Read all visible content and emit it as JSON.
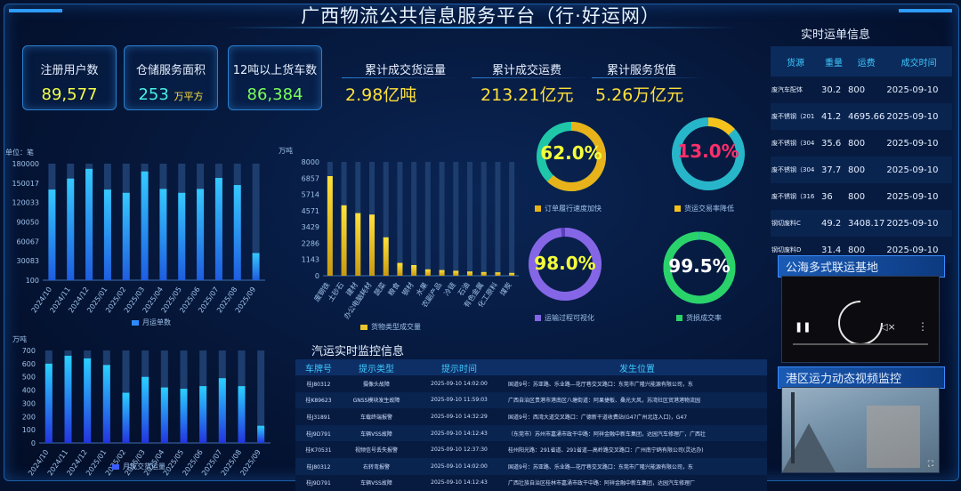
{
  "header": {
    "title": "广西物流公共信息服务平台（行·好运网）"
  },
  "stats": [
    {
      "label": "注册用户数",
      "value": "89,577",
      "unit": "",
      "color": "#f2ff4a"
    },
    {
      "label": "仓储服务面积",
      "value": "253",
      "unit": "万平方",
      "color": "#49f0e6"
    },
    {
      "label": "12吨以上货车数",
      "value": "86,384",
      "unit": "",
      "color": "#7bff5a"
    }
  ],
  "summary": [
    {
      "label": "累计成交货运量",
      "value": "2.98亿吨"
    },
    {
      "label": "累计成交运费",
      "value": "213.21亿元"
    },
    {
      "label": "累计服务货值",
      "value": "5.26万亿元"
    }
  ],
  "chart_data": [
    {
      "type": "bar",
      "id": "monthly-orders",
      "unit_label": "单位：笔",
      "categories": [
        "2024/10",
        "2024/11",
        "2024/12",
        "2025/01",
        "2025/02",
        "2025/03",
        "2025/04",
        "2025/05",
        "2025/06",
        "2025/07",
        "2025/08",
        "2025/09"
      ],
      "yticks": [
        "100",
        "30083",
        "60067",
        "90050",
        "120033",
        "150017",
        "180000"
      ],
      "ylim": [
        100,
        180000
      ],
      "series": [
        {
          "name": "月运单数",
          "values": [
            140000,
            157000,
            172000,
            140000,
            135000,
            168000,
            141000,
            135000,
            141000,
            158000,
            147000,
            42000
          ]
        }
      ],
      "legend": "月运单数"
    },
    {
      "type": "bar",
      "id": "goods-type",
      "unit_label": "万吨",
      "categories": [
        "废钢铁",
        "土砂石",
        "建材",
        "办公电脑耗材",
        "蔬菜",
        "粮食",
        "钢材",
        "水果",
        "农副产品",
        "冷链",
        "石油",
        "有色金属",
        "化工原料",
        "煤炭"
      ],
      "yticks": [
        "0",
        "1143",
        "2286",
        "3429",
        "4571",
        "5714",
        "6857",
        "8000"
      ],
      "ylim": [
        0,
        8000
      ],
      "series": [
        {
          "name": "货物类型成交量",
          "values": [
            7000,
            4950,
            4400,
            4300,
            2700,
            900,
            750,
            450,
            400,
            350,
            300,
            260,
            240,
            200
          ]
        }
      ],
      "legend": "货物类型成交量"
    },
    {
      "type": "bar",
      "id": "monthly-volume",
      "unit_label": "万吨",
      "categories": [
        "2024/10",
        "2024/11",
        "2024/12",
        "2025/01",
        "2025/02",
        "2025/03",
        "2025/04",
        "2025/05",
        "2025/06",
        "2025/07",
        "2025/08",
        "2025/09"
      ],
      "yticks": [
        "0",
        "100",
        "200",
        "300",
        "400",
        "500",
        "600",
        "700"
      ],
      "ylim": [
        0,
        700
      ],
      "series": [
        {
          "name": "月成交货运量",
          "values": [
            600,
            660,
            640,
            590,
            380,
            500,
            420,
            410,
            430,
            490,
            430,
            130
          ]
        }
      ],
      "legend": "月成交货运量"
    }
  ],
  "donuts": [
    {
      "value": "62.0%",
      "pct": 0.62,
      "label": "订单履行速度加快",
      "color": "#e8b21a",
      "track": "#1fc7a8",
      "text": "#f5ff3a"
    },
    {
      "value": "13.0%",
      "pct": 0.13,
      "label": "货运交易率降低",
      "color": "#f5c21b",
      "track": "#27b6c9",
      "text": "#ff2e6a"
    },
    {
      "value": "98.0%",
      "pct": 0.98,
      "label": "运输过程可视化",
      "color": "#8466e6",
      "track": "#5a40b8",
      "text": "#f5ff3a"
    },
    {
      "value": "99.5%",
      "pct": 0.995,
      "label": "货损成交率",
      "color": "#2ad36a",
      "track": "#1bb3c8",
      "text": "#ffffff"
    }
  ],
  "realtime": {
    "title": "实时运单信息",
    "headers": [
      "货源",
      "重量",
      "运费",
      "成交时间"
    ],
    "rows": [
      [
        "废汽车配体",
        "30.2",
        "800",
        "2025-09-10"
      ],
      [
        "废不锈钢（201",
        "41.2",
        "4695.66",
        "2025-09-10"
      ],
      [
        "废不锈钢（304",
        "35.6",
        "800",
        "2025-09-10"
      ],
      [
        "废不锈钢（304",
        "37.7",
        "800",
        "2025-09-10"
      ],
      [
        "废不锈钢（316",
        "36",
        "800",
        "2025-09-10"
      ],
      [
        "钢切废料C",
        "49.2",
        "3408.17",
        "2025-09-10"
      ],
      [
        "钢切废料D",
        "31.4",
        "800",
        "2025-09-10"
      ]
    ]
  },
  "monitor": {
    "title": "汽运实时监控信息",
    "headers": [
      "车牌号",
      "提示类型",
      "提示时间",
      "发生位置"
    ],
    "rows": [
      [
        "桂J80312",
        "摄像头故障",
        "2025-09-10 14:02:00",
        "国道9号：苏亚路、乐业路—花厅巷交叉路口：东莞市广隆兴能源有限公司，东"
      ],
      [
        "桂K89623",
        "GNSS模块发生故障",
        "2025-09-10 11:59:03",
        "广西自治区贵港市港南区八塘街道：阿果捷板、桑光大风，苏湾社区贸港港物流园"
      ],
      [
        "桂J31891",
        "车载终端报警",
        "2025-09-10 14:32:29",
        "国道9号：西湾大道交叉路口：广德新干道收费站(G47广州北连入口)，G47"
      ],
      [
        "桂J9D791",
        "车辆VSS故障",
        "2025-09-10 14:12:43",
        "（东莞市）苏州市嘉涌市政干中路：阿祥金融中新车集团，达园汽车修理厂，广西壮"
      ],
      [
        "桂K70531",
        "视频信号丢失报警",
        "2025-09-10 12:37:30",
        "桂州阳光路：291省道、291省道—高岭路交叉路口：广州南宁鸥有限公司(灵达办)"
      ],
      [
        "桂J80312",
        "右转弯报警",
        "2025-09-10 14:02:00",
        "国道9号：苏亚路、乐业路—花厅巷交叉路口：东莞市广隆兴能源有限公司，东"
      ],
      [
        "桂J9D791",
        "车辆VSS故障",
        "2025-09-10 14:12:43",
        "广西壮族自治区桂林市嘉涌市政干中路：阿祥金融中新车集团，达园汽车修理厂"
      ]
    ]
  },
  "videos": [
    {
      "title": "公海多式联运基地"
    },
    {
      "title": "港区运力动态视频监控"
    }
  ],
  "icons": {
    "play": "play-icon",
    "volume": "volume-icon",
    "more": "more-icon",
    "fullscreen": "fullscreen-icon"
  }
}
